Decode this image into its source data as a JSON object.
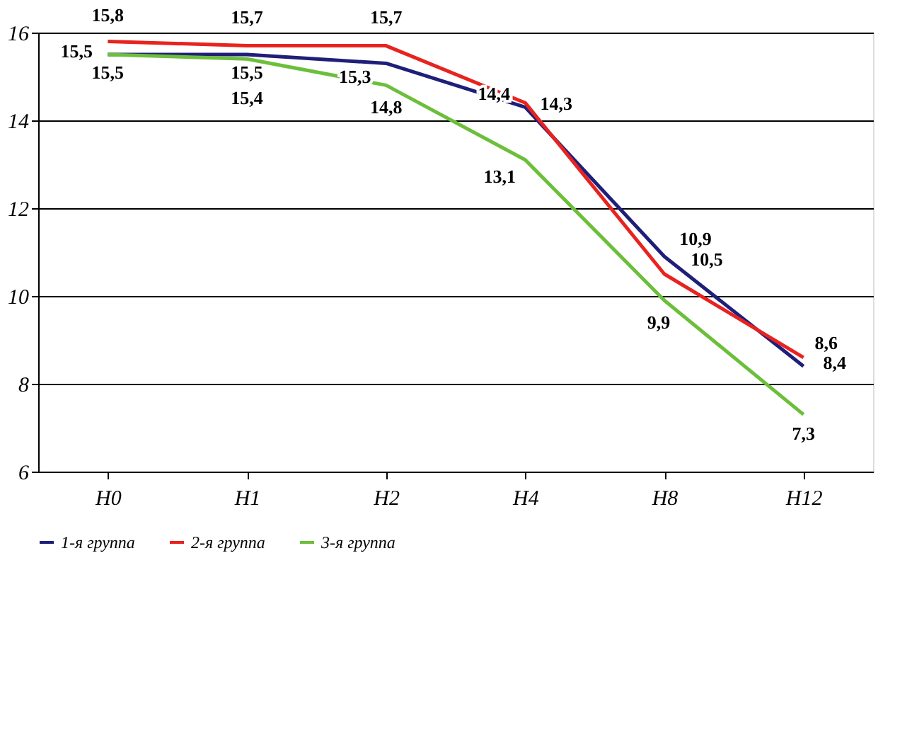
{
  "chart_data": {
    "type": "line",
    "categories": [
      "H0",
      "H1",
      "H2",
      "H4",
      "H8",
      "H12"
    ],
    "series": [
      {
        "name": "1-я группа",
        "color": "#1f1f7a",
        "values": [
          15.5,
          15.5,
          15.3,
          14.3,
          10.9,
          8.4
        ],
        "value_labels": [
          "15,5",
          "15,5",
          "15,3",
          "14,3",
          "10,9",
          "8,4"
        ]
      },
      {
        "name": "2-я группа",
        "color": "#e8231f",
        "values": [
          15.8,
          15.7,
          15.7,
          14.4,
          10.5,
          8.6
        ],
        "value_labels": [
          "15,8",
          "15,7",
          "15,7",
          "14,4",
          "10,5",
          "8,6"
        ]
      },
      {
        "name": "3-я группа",
        "color": "#6cbf3a",
        "values": [
          15.5,
          15.4,
          14.8,
          13.1,
          9.9,
          7.3
        ],
        "value_labels": [
          "15,5",
          "15,4",
          "14,8",
          "13,1",
          "9,9",
          "7,3"
        ]
      }
    ],
    "ylim": [
      6,
      16
    ],
    "yticks": [
      6,
      8,
      10,
      12,
      14,
      16
    ],
    "grid": "y",
    "legend": "bottom",
    "marker": "none",
    "line_style": "solid"
  }
}
